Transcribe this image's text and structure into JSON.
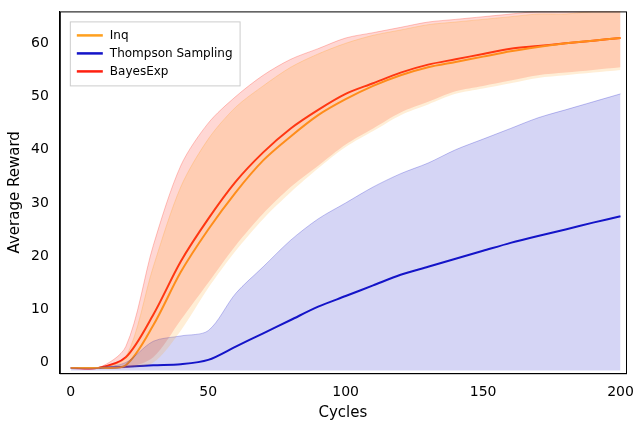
{
  "chart_data": {
    "type": "line",
    "x_label": "Cycles",
    "y_label": "Average Reward",
    "x": [
      0,
      10,
      20,
      30,
      40,
      50,
      60,
      70,
      80,
      90,
      100,
      110,
      120,
      130,
      140,
      150,
      160,
      170,
      180,
      190,
      200
    ],
    "series": [
      {
        "name": "Inq",
        "color": "#ffa01e",
        "values": [
          -1,
          -1,
          -0.5,
          7,
          17,
          25,
          32,
          38,
          42.5,
          46.5,
          49.5,
          52,
          54,
          55.5,
          56.5,
          57.5,
          58.5,
          59.3,
          60,
          60.5,
          61
        ],
        "lower": [
          -1,
          -1,
          -1,
          0,
          6,
          14,
          21,
          27,
          32,
          36.5,
          40.5,
          43.5,
          46.5,
          48.5,
          50.5,
          51.5,
          52.5,
          53.5,
          54,
          54.5,
          55
        ],
        "upper": [
          -1,
          -1,
          1,
          18,
          33,
          42,
          48,
          52,
          55.5,
          58,
          60,
          61.5,
          62.5,
          63.5,
          64,
          64.5,
          65,
          65.5,
          65.5,
          66,
          66
        ]
      },
      {
        "name": "Thompson Sampling",
        "color": "#1414c8",
        "values": [
          -1,
          -1,
          -0.8,
          -0.5,
          -0.3,
          0.5,
          3,
          5.5,
          8,
          10.5,
          12.5,
          14.5,
          16.5,
          18,
          19.5,
          21,
          22.5,
          23.8,
          25,
          26.3,
          27.5
        ],
        "lower": [
          -1.5,
          -1.5,
          -1.5,
          -1.5,
          -1.5,
          -1.5,
          -1.5,
          -1.5,
          -1.5,
          -1.5,
          -1.5,
          -1.5,
          -1.5,
          -1.5,
          -1.5,
          -1.5,
          -1.5,
          -1.5,
          -1.5,
          -1.5,
          -1.5
        ],
        "upper": [
          -1,
          -1,
          0,
          4,
          5,
          6,
          13,
          18,
          23,
          27,
          30,
          33,
          35.5,
          37.5,
          40,
          42,
          44,
          46,
          47.5,
          49,
          50.5
        ]
      },
      {
        "name": "BayesExp",
        "color": "#ff2010",
        "values": [
          -1,
          -1,
          1,
          9,
          19,
          27,
          34,
          39.5,
          44,
          47.5,
          50.5,
          52.5,
          54.5,
          56,
          57,
          58,
          59,
          59.5,
          60,
          60.5,
          61
        ],
        "lower": [
          -1,
          -1,
          -1,
          1,
          8,
          15,
          22,
          28,
          33,
          37,
          41,
          44,
          47,
          49,
          51,
          52,
          53,
          54,
          54.5,
          55,
          55.5
        ],
        "upper": [
          -1,
          -1,
          3,
          22,
          37,
          45,
          50,
          54,
          57,
          59,
          61,
          62,
          63,
          64,
          64.5,
          65,
          65.5,
          66,
          66,
          66,
          66
        ]
      }
    ],
    "xlim": [
      -4,
      202
    ],
    "xticks": [
      0,
      50,
      100,
      150,
      200
    ],
    "ylim": [
      -2,
      66
    ],
    "yticks": [
      0,
      10,
      20,
      30,
      40,
      50,
      60
    ],
    "grid": false,
    "legend": "upper left"
  }
}
